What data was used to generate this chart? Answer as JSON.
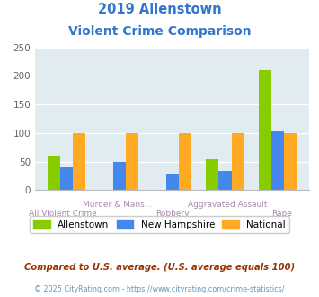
{
  "title_line1": "2019 Allenstown",
  "title_line2": "Violent Crime Comparison",
  "categories": [
    "All Violent Crime",
    "Murder & Mans...",
    "Robbery",
    "Aggravated Assault",
    "Rape"
  ],
  "allenstown": [
    60,
    0,
    0,
    54,
    211
  ],
  "new_hampshire": [
    40,
    50,
    29,
    34,
    103
  ],
  "national": [
    100,
    100,
    100,
    100,
    100
  ],
  "color_allenstown": "#88cc00",
  "color_new_hampshire": "#4488ee",
  "color_national": "#ffaa22",
  "ylim": [
    0,
    250
  ],
  "yticks": [
    0,
    50,
    100,
    150,
    200,
    250
  ],
  "background_color": "#e0ecf0",
  "legend_labels": [
    "Allenstown",
    "New Hampshire",
    "National"
  ],
  "footnote1": "Compared to U.S. average. (U.S. average equals 100)",
  "footnote2": "© 2025 CityRating.com - https://www.cityrating.com/crime-statistics/",
  "title_color": "#3377cc",
  "footnote1_color": "#993300",
  "footnote2_color": "#6699bb",
  "xlabel_color": "#aa88aa"
}
